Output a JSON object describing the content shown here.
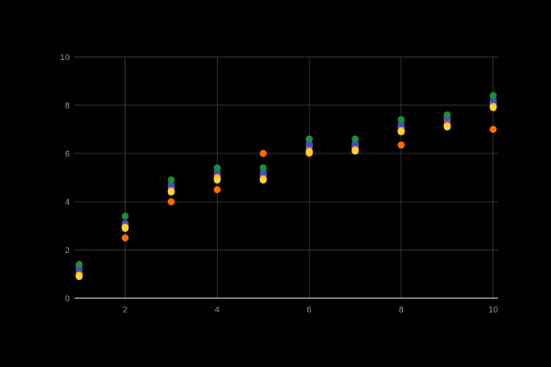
{
  "chart_data": {
    "type": "scatter",
    "title": "",
    "xlabel": "",
    "ylabel": "",
    "xlim": [
      1,
      10
    ],
    "ylim": [
      0,
      10
    ],
    "x_ticks": [
      "2",
      "4",
      "6",
      "8",
      "10"
    ],
    "y_ticks": [
      "0",
      "2",
      "4",
      "6",
      "8",
      "10"
    ],
    "grid": true,
    "legend": "none",
    "background": "#000000",
    "gridline_color": "#3a3a3a",
    "axis_color": "#ffffff",
    "x": [
      1,
      2,
      3,
      4,
      5,
      6,
      7,
      8,
      9,
      10
    ],
    "series": [
      {
        "color": "#ff6d00",
        "values": [
          1.0,
          2.5,
          4.0,
          4.5,
          6.0,
          6.0,
          6.2,
          6.35,
          7.2,
          7.0
        ]
      },
      {
        "color": "#ab47bc",
        "values": [
          1.2,
          3.0,
          4.6,
          5.1,
          5.1,
          6.3,
          6.3,
          7.1,
          7.4,
          8.1
        ]
      },
      {
        "color": "#3f51b5",
        "values": [
          1.25,
          3.1,
          4.7,
          5.2,
          5.2,
          6.4,
          6.4,
          7.2,
          7.5,
          8.2
        ]
      },
      {
        "color": "#ffab40",
        "values": [
          0.95,
          2.95,
          4.45,
          5.0,
          4.95,
          6.1,
          6.15,
          6.95,
          7.15,
          7.95
        ]
      },
      {
        "color": "#fdd835",
        "values": [
          0.9,
          2.9,
          4.4,
          4.9,
          4.9,
          6.05,
          6.1,
          6.9,
          7.1,
          7.9
        ]
      },
      {
        "color": "#1e8e3e",
        "values": [
          1.4,
          3.4,
          4.9,
          5.4,
          5.4,
          6.6,
          6.6,
          7.4,
          7.6,
          8.4
        ]
      }
    ]
  }
}
